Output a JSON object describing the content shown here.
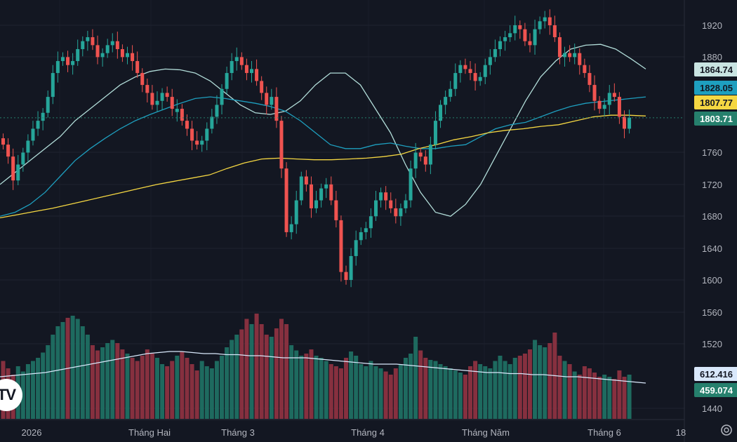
{
  "chart_data": {
    "type": "candlestick",
    "y_axis_ticks": [
      1440,
      1520,
      1560,
      1600,
      1640,
      1680,
      1720,
      1760,
      1880,
      1920
    ],
    "x_axis_labels": [
      "2026",
      "Tháng Hai",
      "Tháng 3",
      "Tháng 4",
      "Tháng Năm",
      "Tháng 6",
      "18"
    ],
    "price_ylim": [
      1585,
      1935
    ],
    "last_price": 1803.71,
    "price_badges": [
      {
        "label": "1864.74",
        "value": 1864.74,
        "bg": "#c9e4e2",
        "fg": "#131722"
      },
      {
        "label": "1828.05",
        "value": 1828.05,
        "bg": "#1e9fbf",
        "fg": "#131722"
      },
      {
        "label": "1807.77",
        "value": 1807.77,
        "bg": "#f5d742",
        "fg": "#131722"
      },
      {
        "label": "1803.71",
        "value": 1803.71,
        "bg": "#26806d",
        "fg": "#ffffff"
      }
    ],
    "volume_badges": [
      {
        "label": "612.416",
        "bg": "#d9e8fb",
        "fg": "#131722"
      },
      {
        "label": "459.074",
        "bg": "#26806d",
        "fg": "#ffffff"
      }
    ],
    "candles_close": [
      1770,
      1755,
      1725,
      1745,
      1760,
      1775,
      1790,
      1800,
      1810,
      1830,
      1860,
      1875,
      1880,
      1870,
      1875,
      1890,
      1900,
      1905,
      1895,
      1880,
      1885,
      1895,
      1900,
      1890,
      1880,
      1885,
      1875,
      1860,
      1845,
      1835,
      1820,
      1825,
      1835,
      1830,
      1815,
      1815,
      1800,
      1790,
      1775,
      1770,
      1775,
      1790,
      1805,
      1820,
      1840,
      1860,
      1875,
      1880,
      1870,
      1860,
      1865,
      1850,
      1835,
      1820,
      1830,
      1800,
      1740,
      1660,
      1670,
      1700,
      1730,
      1720,
      1690,
      1700,
      1715,
      1720,
      1700,
      1675,
      1610,
      1600,
      1630,
      1650,
      1660,
      1665,
      1680,
      1700,
      1710,
      1700,
      1690,
      1680,
      1690,
      1700,
      1740,
      1760,
      1755,
      1745,
      1770,
      1800,
      1820,
      1830,
      1840,
      1860,
      1870,
      1865,
      1860,
      1850,
      1855,
      1870,
      1880,
      1890,
      1900,
      1905,
      1910,
      1920,
      1915,
      1900,
      1895,
      1915,
      1925,
      1930,
      1920,
      1905,
      1880,
      1885,
      1880,
      1885,
      1870,
      1860,
      1845,
      1825,
      1815,
      1820,
      1835,
      1830,
      1805,
      1790,
      1804
    ],
    "candles_up": [
      false,
      false,
      false,
      true,
      true,
      true,
      true,
      true,
      true,
      true,
      true,
      true,
      true,
      false,
      true,
      true,
      true,
      true,
      false,
      false,
      true,
      true,
      true,
      false,
      false,
      true,
      false,
      false,
      false,
      false,
      false,
      true,
      true,
      false,
      false,
      true,
      false,
      false,
      false,
      false,
      true,
      true,
      true,
      true,
      true,
      true,
      true,
      true,
      false,
      false,
      true,
      false,
      false,
      false,
      true,
      false,
      false,
      false,
      true,
      true,
      true,
      false,
      false,
      true,
      true,
      true,
      false,
      false,
      false,
      false,
      true,
      true,
      true,
      true,
      true,
      true,
      true,
      false,
      false,
      false,
      true,
      true,
      true,
      true,
      false,
      false,
      true,
      true,
      true,
      true,
      true,
      true,
      true,
      false,
      false,
      false,
      true,
      true,
      true,
      true,
      true,
      true,
      true,
      true,
      false,
      false,
      false,
      true,
      true,
      true,
      false,
      false,
      false,
      true,
      false,
      true,
      false,
      false,
      false,
      false,
      false,
      true,
      true,
      false,
      false,
      false,
      true
    ],
    "series": [
      {
        "name": "",
        "color": "#b2ddd9",
        "values": [
          1720,
          1735,
          1750,
          1765,
          1780,
          1800,
          1815,
          1830,
          1845,
          1855,
          1862,
          1865,
          1864,
          1860,
          1850,
          1835,
          1820,
          1810,
          1808,
          1812,
          1825,
          1845,
          1860,
          1860,
          1845,
          1815,
          1785,
          1745,
          1710,
          1685,
          1680,
          1695,
          1720,
          1755,
          1790,
          1825,
          1855,
          1875,
          1890,
          1895,
          1896,
          1890,
          1878,
          1865
        ]
      },
      {
        "name": "",
        "color": "#1e9fbf",
        "values": [
          1680,
          1685,
          1695,
          1710,
          1730,
          1750,
          1765,
          1778,
          1790,
          1800,
          1808,
          1815,
          1822,
          1828,
          1830,
          1828,
          1825,
          1822,
          1818,
          1812,
          1800,
          1785,
          1770,
          1765,
          1765,
          1770,
          1772,
          1768,
          1765,
          1765,
          1768,
          1770,
          1780,
          1790,
          1795,
          1798,
          1805,
          1812,
          1818,
          1822,
          1824,
          1826,
          1828,
          1830
        ]
      },
      {
        "name": "",
        "color": "#f5d742",
        "values": [
          1678,
          1682,
          1686,
          1690,
          1695,
          1700,
          1705,
          1710,
          1715,
          1720,
          1724,
          1728,
          1732,
          1740,
          1747,
          1752,
          1753,
          1752,
          1751,
          1751,
          1752,
          1753,
          1755,
          1758,
          1765,
          1770,
          1776,
          1780,
          1785,
          1788,
          1790,
          1793,
          1795,
          1800,
          1805,
          1807,
          1807,
          1806
        ]
      }
    ],
    "volumes": [
      0.55,
      0.48,
      0.42,
      0.5,
      0.45,
      0.52,
      0.55,
      0.58,
      0.63,
      0.7,
      0.8,
      0.88,
      0.92,
      0.96,
      0.98,
      0.95,
      0.88,
      0.8,
      0.7,
      0.65,
      0.68,
      0.72,
      0.75,
      0.72,
      0.66,
      0.62,
      0.58,
      0.55,
      0.6,
      0.66,
      0.62,
      0.58,
      0.52,
      0.5,
      0.55,
      0.6,
      0.64,
      0.58,
      0.52,
      0.46,
      0.55,
      0.5,
      0.48,
      0.55,
      0.6,
      0.68,
      0.75,
      0.8,
      0.85,
      0.95,
      0.9,
      1.0,
      0.9,
      0.8,
      0.78,
      0.86,
      0.95,
      0.9,
      0.7,
      0.65,
      0.6,
      0.62,
      0.66,
      0.6,
      0.58,
      0.55,
      0.52,
      0.5,
      0.48,
      0.58,
      0.64,
      0.6,
      0.52,
      0.5,
      0.55,
      0.5,
      0.48,
      0.45,
      0.42,
      0.48,
      0.52,
      0.58,
      0.62,
      0.78,
      0.65,
      0.58,
      0.56,
      0.55,
      0.52,
      0.5,
      0.48,
      0.46,
      0.44,
      0.42,
      0.5,
      0.55,
      0.52,
      0.5,
      0.48,
      0.55,
      0.6,
      0.55,
      0.52,
      0.58,
      0.6,
      0.62,
      0.66,
      0.75,
      0.7,
      0.68,
      0.72,
      0.82,
      0.6,
      0.55,
      0.52,
      0.45,
      0.42,
      0.5,
      0.48,
      0.44,
      0.4,
      0.42,
      0.4,
      0.38,
      0.46,
      0.4,
      0.42
    ],
    "volume_ma": [
      0.4,
      0.41,
      0.42,
      0.43,
      0.44,
      0.46,
      0.48,
      0.5,
      0.52,
      0.54,
      0.56,
      0.58,
      0.6,
      0.62,
      0.63,
      0.64,
      0.64,
      0.63,
      0.62,
      0.62,
      0.61,
      0.61,
      0.6,
      0.6,
      0.59,
      0.58,
      0.58,
      0.58,
      0.57,
      0.56,
      0.55,
      0.54,
      0.53,
      0.52,
      0.52,
      0.52,
      0.51,
      0.5,
      0.49,
      0.48,
      0.47,
      0.46,
      0.45,
      0.44,
      0.44,
      0.43,
      0.43,
      0.42,
      0.42,
      0.41,
      0.4,
      0.4,
      0.39,
      0.38,
      0.37,
      0.36,
      0.35,
      0.34
    ]
  }
}
